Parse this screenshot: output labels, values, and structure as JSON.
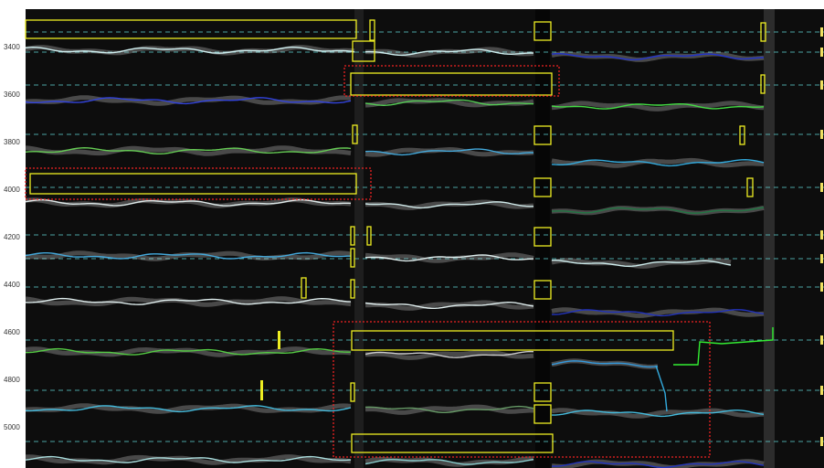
{
  "axis": {
    "labels": [
      "3400",
      "3600",
      "3800",
      "4000",
      "4200",
      "4400",
      "4600",
      "4800",
      "5000"
    ]
  }
}
